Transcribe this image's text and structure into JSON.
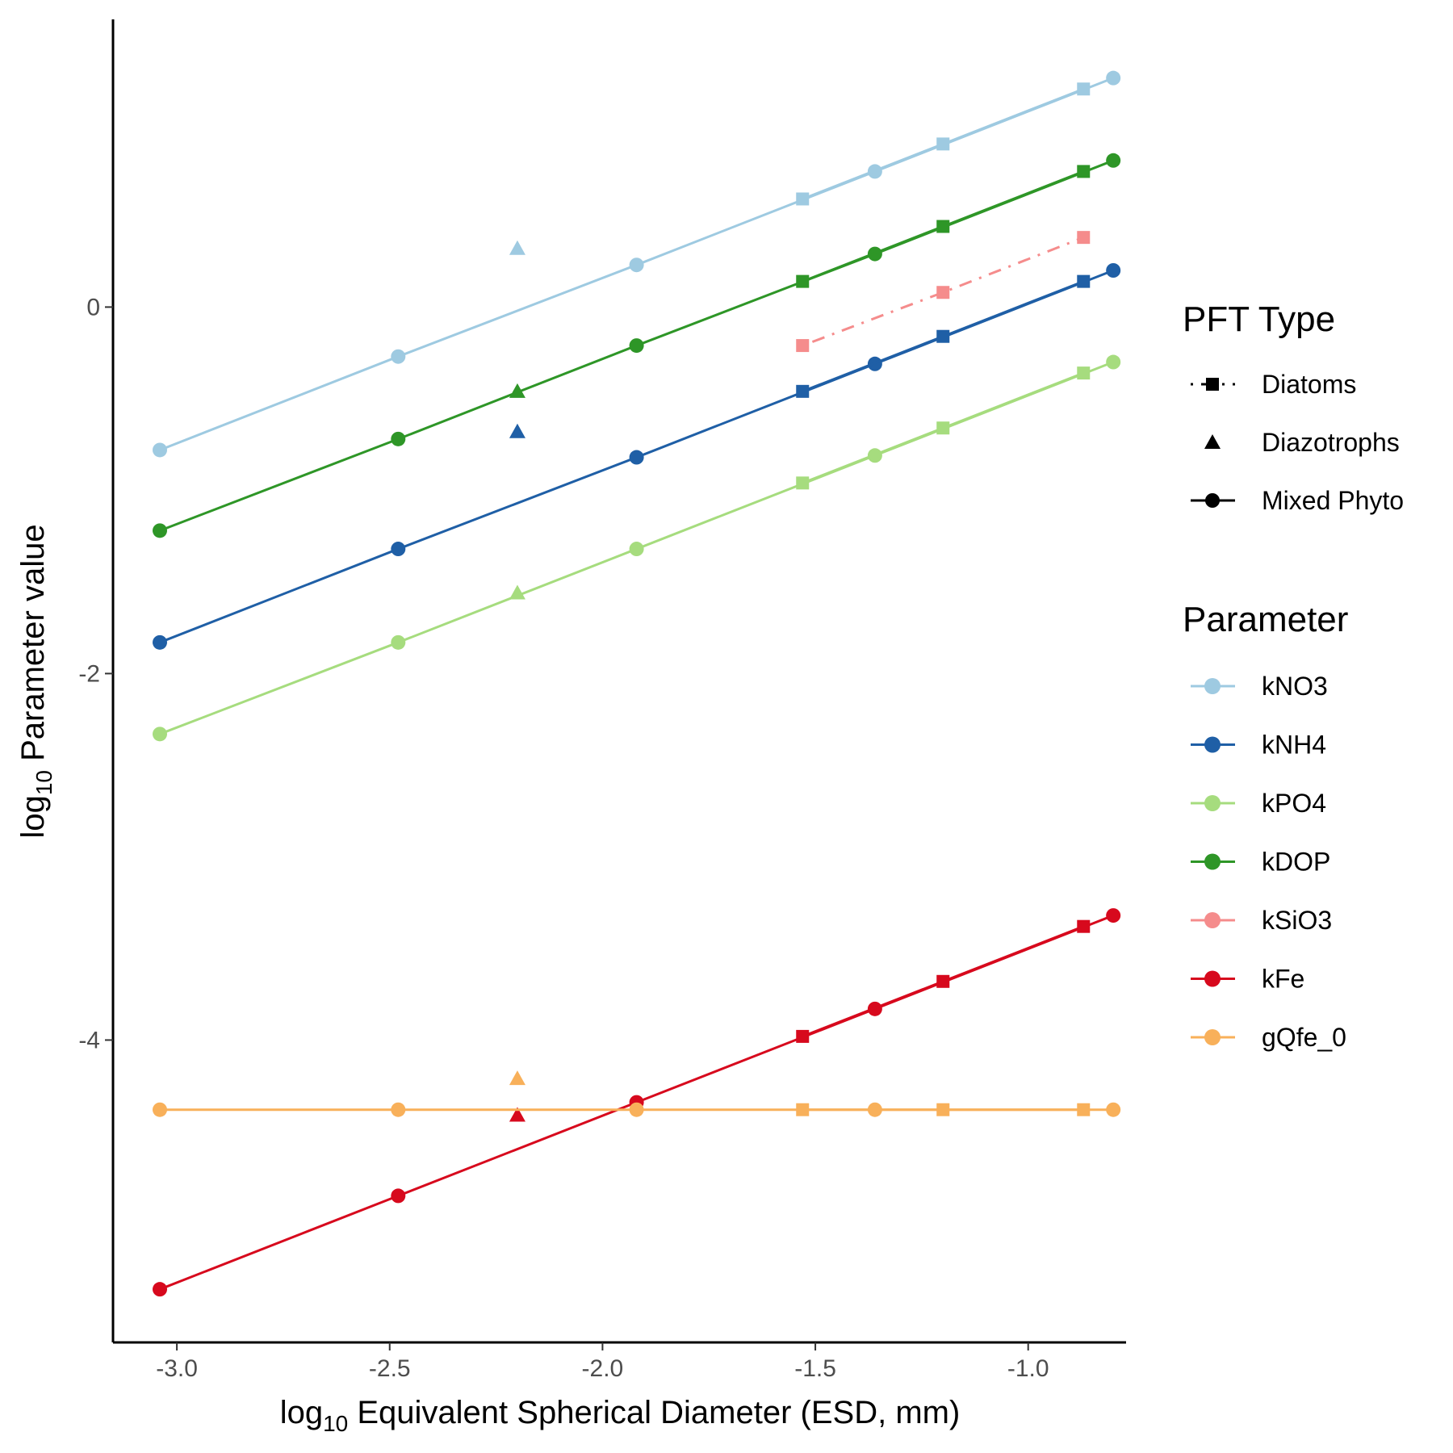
{
  "chart_data": {
    "type": "line",
    "xlabel_prefix": "log",
    "xlabel_sub": "10",
    "xlabel_rest": " Equivalent Spherical Diameter (ESD, mm)",
    "ylabel_prefix": "log",
    "ylabel_sub": "10",
    "ylabel_rest": " Parameter value",
    "xlim": [
      -3.15,
      -0.77
    ],
    "ylim": [
      -5.65,
      1.57
    ],
    "x_ticks": [
      -3.0,
      -2.5,
      -2.0,
      -1.5,
      -1.0
    ],
    "x_tick_labels": [
      "-3.0",
      "-2.5",
      "-2.0",
      "-1.5",
      "-1.0"
    ],
    "y_ticks": [
      0,
      -2,
      -4
    ],
    "y_tick_labels": [
      "0",
      "-2",
      "-4"
    ],
    "grid": false,
    "legend_position": "right",
    "pft_legend": {
      "title": "PFT Type",
      "items": [
        {
          "label": "Diatoms",
          "shape": "square",
          "dash": "dotdash"
        },
        {
          "label": "Diazotrophs",
          "shape": "triangle",
          "dash": "none"
        },
        {
          "label": "Mixed Phyto",
          "shape": "circle",
          "dash": "solid"
        }
      ]
    },
    "parameter_legend": {
      "title": "Parameter",
      "items": [
        {
          "label": "kNO3",
          "color": "#9ecae1"
        },
        {
          "label": "kNH4",
          "color": "#1f5fa6"
        },
        {
          "label": "kPO4",
          "color": "#a6dc7e"
        },
        {
          "label": "kDOP",
          "color": "#2e9627"
        },
        {
          "label": "kSiO3",
          "color": "#f58c8c"
        },
        {
          "label": "kFe",
          "color": "#d7091d"
        },
        {
          "label": "gQfe_0",
          "color": "#f8b05a"
        }
      ]
    },
    "series": [
      {
        "name": "kNO3",
        "pft": "Mixed Phyto",
        "color": "#9ecae1",
        "shape": "circle",
        "dash": "solid",
        "points": [
          [
            -3.04,
            -0.78
          ],
          [
            -2.48,
            -0.27
          ],
          [
            -1.92,
            0.23
          ],
          [
            -1.36,
            0.74
          ],
          [
            -0.8,
            1.25
          ]
        ]
      },
      {
        "name": "kNO3",
        "pft": "Diatoms",
        "color": "#9ecae1",
        "shape": "square",
        "dash": "solid",
        "points": [
          [
            -1.53,
            0.59
          ],
          [
            -1.2,
            0.89
          ],
          [
            -0.87,
            1.19
          ]
        ]
      },
      {
        "name": "kNO3",
        "pft": "Diazotrophs",
        "color": "#9ecae1",
        "shape": "triangle",
        "dash": "none",
        "points": [
          [
            -2.2,
            0.32
          ]
        ]
      },
      {
        "name": "kDOP",
        "pft": "Mixed Phyto",
        "color": "#2e9627",
        "shape": "circle",
        "dash": "solid",
        "points": [
          [
            -3.04,
            -1.22
          ],
          [
            -2.48,
            -0.72
          ],
          [
            -1.92,
            -0.21
          ],
          [
            -1.36,
            0.29
          ],
          [
            -0.8,
            0.8
          ]
        ]
      },
      {
        "name": "kDOP",
        "pft": "Diatoms",
        "color": "#2e9627",
        "shape": "square",
        "dash": "solid",
        "points": [
          [
            -1.53,
            0.14
          ],
          [
            -1.2,
            0.44
          ],
          [
            -0.87,
            0.74
          ]
        ]
      },
      {
        "name": "kDOP",
        "pft": "Diazotrophs",
        "color": "#2e9627",
        "shape": "triangle",
        "dash": "none",
        "points": [
          [
            -2.2,
            -0.46
          ]
        ]
      },
      {
        "name": "kSiO3",
        "pft": "Diatoms",
        "color": "#f58c8c",
        "shape": "square",
        "dash": "dotdash",
        "points": [
          [
            -1.53,
            -0.21
          ],
          [
            -1.2,
            0.08
          ],
          [
            -0.87,
            0.38
          ]
        ]
      },
      {
        "name": "kNH4",
        "pft": "Mixed Phyto",
        "color": "#1f5fa6",
        "shape": "circle",
        "dash": "solid",
        "points": [
          [
            -3.04,
            -1.83
          ],
          [
            -2.48,
            -1.32
          ],
          [
            -1.92,
            -0.82
          ],
          [
            -1.36,
            -0.31
          ],
          [
            -0.8,
            0.2
          ]
        ]
      },
      {
        "name": "kNH4",
        "pft": "Diatoms",
        "color": "#1f5fa6",
        "shape": "square",
        "dash": "solid",
        "points": [
          [
            -1.53,
            -0.46
          ],
          [
            -1.2,
            -0.16
          ],
          [
            -0.87,
            0.14
          ]
        ]
      },
      {
        "name": "kNH4",
        "pft": "Diazotrophs",
        "color": "#1f5fa6",
        "shape": "triangle",
        "dash": "none",
        "points": [
          [
            -2.2,
            -0.68
          ]
        ]
      },
      {
        "name": "kPO4",
        "pft": "Mixed Phyto",
        "color": "#a6dc7e",
        "shape": "circle",
        "dash": "solid",
        "points": [
          [
            -3.04,
            -2.33
          ],
          [
            -2.48,
            -1.83
          ],
          [
            -1.92,
            -1.32
          ],
          [
            -1.36,
            -0.81
          ],
          [
            -0.8,
            -0.3
          ]
        ]
      },
      {
        "name": "kPO4",
        "pft": "Diatoms",
        "color": "#a6dc7e",
        "shape": "square",
        "dash": "solid",
        "points": [
          [
            -1.53,
            -0.96
          ],
          [
            -1.2,
            -0.66
          ],
          [
            -0.87,
            -0.36
          ]
        ]
      },
      {
        "name": "kPO4",
        "pft": "Diazotrophs",
        "color": "#a6dc7e",
        "shape": "triangle",
        "dash": "solid",
        "points": [
          [
            -2.2,
            -1.56
          ]
        ]
      },
      {
        "name": "kFe",
        "pft": "Mixed Phyto",
        "color": "#d7091d",
        "shape": "circle",
        "dash": "solid",
        "points": [
          [
            -3.04,
            -5.36
          ],
          [
            -2.48,
            -4.85
          ],
          [
            -1.92,
            -4.34
          ],
          [
            -1.36,
            -3.83
          ],
          [
            -0.8,
            -3.32
          ]
        ]
      },
      {
        "name": "kFe",
        "pft": "Diatoms",
        "color": "#d7091d",
        "shape": "square",
        "dash": "solid",
        "points": [
          [
            -1.53,
            -3.98
          ],
          [
            -1.2,
            -3.68
          ],
          [
            -0.87,
            -3.38
          ]
        ]
      },
      {
        "name": "kFe",
        "pft": "Diazotrophs",
        "color": "#d7091d",
        "shape": "triangle",
        "dash": "none",
        "points": [
          [
            -2.2,
            -4.41
          ]
        ]
      },
      {
        "name": "gQfe_0",
        "pft": "Mixed Phyto",
        "color": "#f8b05a",
        "shape": "circle",
        "dash": "solid",
        "points": [
          [
            -3.04,
            -4.38
          ],
          [
            -2.48,
            -4.38
          ],
          [
            -1.92,
            -4.38
          ],
          [
            -1.36,
            -4.38
          ],
          [
            -0.8,
            -4.38
          ]
        ]
      },
      {
        "name": "gQfe_0",
        "pft": "Diatoms",
        "color": "#f8b05a",
        "shape": "square",
        "dash": "solid",
        "points": [
          [
            -1.53,
            -4.38
          ],
          [
            -1.2,
            -4.38
          ],
          [
            -0.87,
            -4.38
          ]
        ]
      },
      {
        "name": "gQfe_0",
        "pft": "Diazotrophs",
        "color": "#f8b05a",
        "shape": "triangle",
        "dash": "none",
        "points": [
          [
            -2.2,
            -4.21
          ]
        ]
      }
    ]
  }
}
